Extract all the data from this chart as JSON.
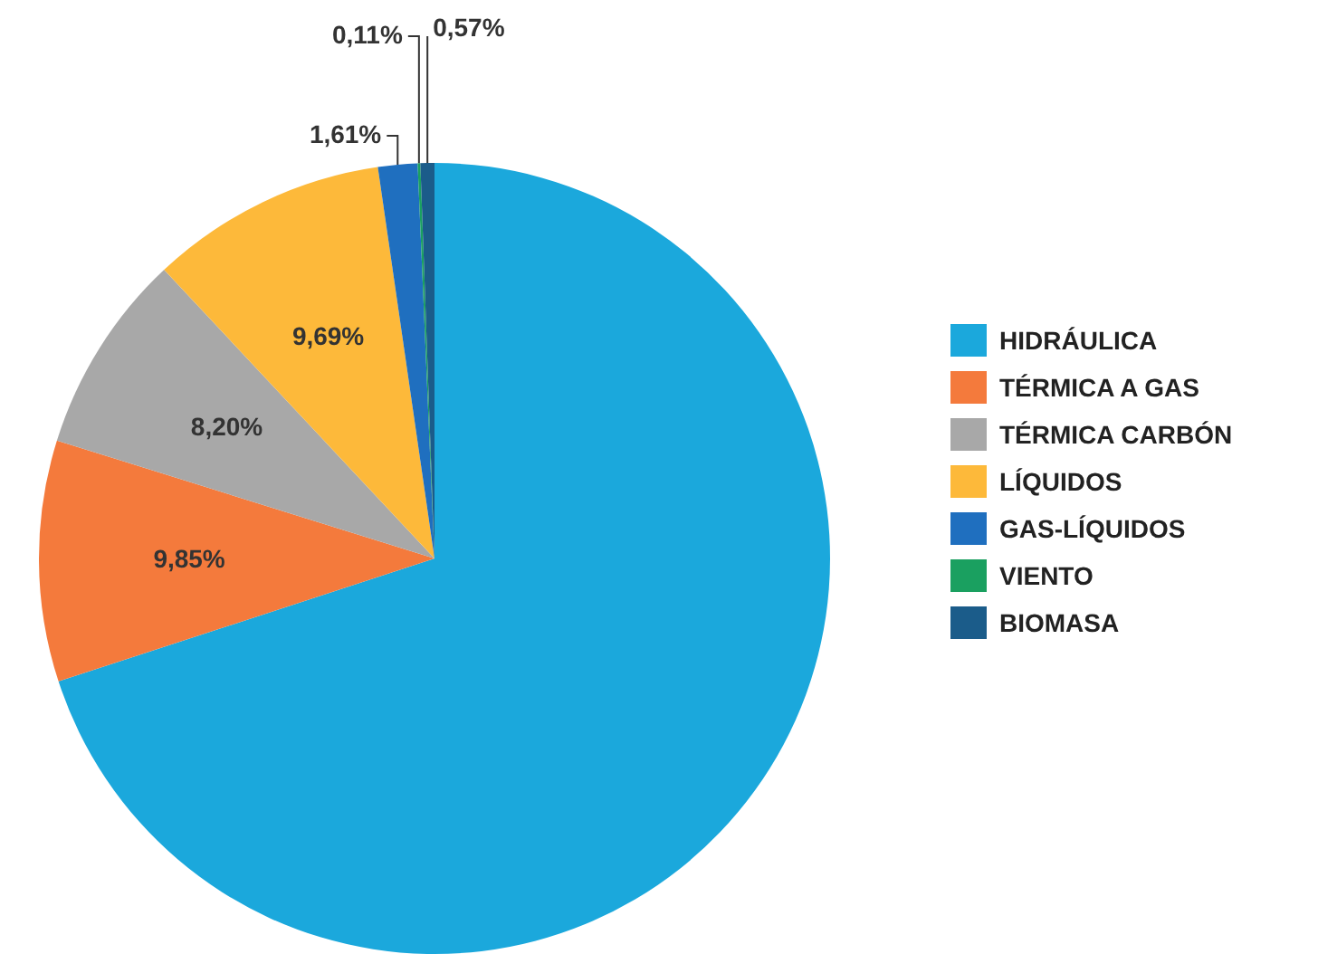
{
  "chart_data": {
    "type": "pie",
    "categories": [
      "HIDRÁULICA",
      "TÉRMICA A GAS",
      "TÉRMICA CARBÓN",
      "LÍQUIDOS",
      "GAS-LÍQUIDOS",
      "VIENTO",
      "BIOMASA"
    ],
    "values": [
      69.97,
      9.85,
      8.2,
      9.69,
      1.61,
      0.11,
      0.57
    ],
    "colors": [
      "#1ba8dc",
      "#f47a3c",
      "#a8a8a8",
      "#fdb93a",
      "#1f6fbf",
      "#1aa060",
      "#1b5c8a"
    ],
    "value_labels": [
      null,
      "9,85%",
      "8,20%",
      "9,69%",
      "1,61%",
      "0,11%",
      "0,57%"
    ],
    "legend": "right"
  }
}
